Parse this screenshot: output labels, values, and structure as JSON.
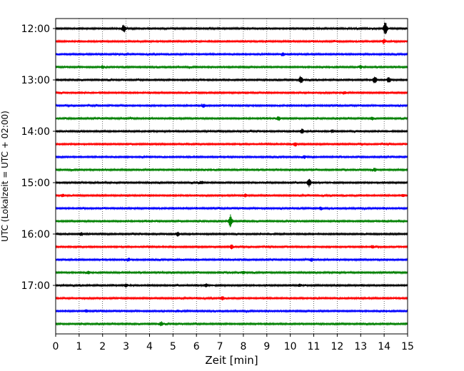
{
  "chart_data": {
    "type": "line",
    "chart_kind": "helicorder seismogram",
    "xlabel": "Zeit  [min]",
    "ylabel": "UTC (Lokalzeit = UTC + 02:00)",
    "xlim": [
      0,
      15
    ],
    "x_ticks": [
      0,
      1,
      2,
      3,
      4,
      5,
      6,
      7,
      8,
      9,
      10,
      11,
      12,
      13,
      14,
      15
    ],
    "x_tick_labels": [
      "0",
      "1",
      "2",
      "3",
      "4",
      "5",
      "6",
      "7",
      "8",
      "9",
      "10",
      "11",
      "12",
      "13",
      "14",
      "15"
    ],
    "x_grid": "dotted vertical at each minute",
    "trace_length_min": 15,
    "trace_colors": [
      "#000000",
      "#ff0000",
      "#0000ff",
      "#008000"
    ],
    "y_ticks": [
      {
        "label": "12:00",
        "row": 0
      },
      {
        "label": "13:00",
        "row": 4
      },
      {
        "label": "14:00",
        "row": 8
      },
      {
        "label": "15:00",
        "row": 12
      },
      {
        "label": "16:00",
        "row": 16
      },
      {
        "label": "17:00",
        "row": 20
      }
    ],
    "rows": [
      {
        "start": "12:00",
        "color": "#000000",
        "events": [
          {
            "t": 2.9,
            "amp": 0.55
          },
          {
            "t": 14.05,
            "amp": 0.9
          }
        ]
      },
      {
        "start": "12:15",
        "color": "#ff0000",
        "events": [
          {
            "t": 14.0,
            "amp": 0.25
          }
        ]
      },
      {
        "start": "12:30",
        "color": "#0000ff",
        "events": [
          {
            "t": 9.7,
            "amp": 0.2
          }
        ]
      },
      {
        "start": "12:45",
        "color": "#008000",
        "events": [
          {
            "t": 2.0,
            "amp": 0.2
          },
          {
            "t": 13.0,
            "amp": 0.2
          }
        ]
      },
      {
        "start": "13:00",
        "color": "#000000",
        "events": [
          {
            "t": 10.45,
            "amp": 0.55
          },
          {
            "t": 13.6,
            "amp": 0.5
          },
          {
            "t": 14.2,
            "amp": 0.35
          }
        ]
      },
      {
        "start": "13:15",
        "color": "#ff0000",
        "events": [
          {
            "t": 12.3,
            "amp": 0.2
          }
        ]
      },
      {
        "start": "13:30",
        "color": "#0000ff",
        "events": [
          {
            "t": 6.3,
            "amp": 0.2
          }
        ]
      },
      {
        "start": "13:45",
        "color": "#008000",
        "events": [
          {
            "t": 9.5,
            "amp": 0.25
          },
          {
            "t": 13.5,
            "amp": 0.2
          }
        ]
      },
      {
        "start": "14:00",
        "color": "#000000",
        "events": [
          {
            "t": 10.5,
            "amp": 0.3
          },
          {
            "t": 11.8,
            "amp": 0.2
          }
        ]
      },
      {
        "start": "14:15",
        "color": "#ff0000",
        "events": [
          {
            "t": 10.2,
            "amp": 0.25
          }
        ]
      },
      {
        "start": "14:30",
        "color": "#0000ff",
        "events": [
          {
            "t": 10.6,
            "amp": 0.2
          }
        ]
      },
      {
        "start": "14:45",
        "color": "#008000",
        "events": [
          {
            "t": 13.6,
            "amp": 0.2
          }
        ]
      },
      {
        "start": "15:00",
        "color": "#000000",
        "events": [
          {
            "t": 10.8,
            "amp": 0.55
          },
          {
            "t": 6.2,
            "amp": 0.2
          }
        ]
      },
      {
        "start": "15:15",
        "color": "#ff0000",
        "events": [
          {
            "t": 0.3,
            "amp": 0.2
          },
          {
            "t": 8.1,
            "amp": 0.2
          },
          {
            "t": 14.8,
            "amp": 0.2
          }
        ]
      },
      {
        "start": "15:30",
        "color": "#0000ff",
        "events": [
          {
            "t": 11.3,
            "amp": 0.2
          }
        ]
      },
      {
        "start": "15:45",
        "color": "#008000",
        "events": [
          {
            "t": 7.45,
            "amp": 0.8
          }
        ]
      },
      {
        "start": "16:00",
        "color": "#000000",
        "events": [
          {
            "t": 5.2,
            "amp": 0.3
          },
          {
            "t": 1.1,
            "amp": 0.2
          }
        ]
      },
      {
        "start": "16:15",
        "color": "#ff0000",
        "events": [
          {
            "t": 7.5,
            "amp": 0.25
          },
          {
            "t": 13.5,
            "amp": 0.2
          }
        ]
      },
      {
        "start": "16:30",
        "color": "#0000ff",
        "events": [
          {
            "t": 3.1,
            "amp": 0.2
          },
          {
            "t": 10.9,
            "amp": 0.2
          }
        ]
      },
      {
        "start": "16:45",
        "color": "#008000",
        "events": [
          {
            "t": 8.0,
            "amp": 0.2
          },
          {
            "t": 1.4,
            "amp": 0.15
          }
        ]
      },
      {
        "start": "17:00",
        "color": "#000000",
        "events": [
          {
            "t": 3.0,
            "amp": 0.2
          },
          {
            "t": 6.4,
            "amp": 0.2
          },
          {
            "t": 10.4,
            "amp": 0.2
          }
        ]
      },
      {
        "start": "17:15",
        "color": "#ff0000",
        "events": [
          {
            "t": 7.1,
            "amp": 0.25
          }
        ]
      },
      {
        "start": "17:30",
        "color": "#0000ff",
        "events": [
          {
            "t": 5.2,
            "amp": 0.15
          },
          {
            "t": 1.3,
            "amp": 0.15
          }
        ]
      },
      {
        "start": "17:45",
        "color": "#008000",
        "events": [
          {
            "t": 4.5,
            "amp": 0.3
          }
        ]
      }
    ]
  }
}
